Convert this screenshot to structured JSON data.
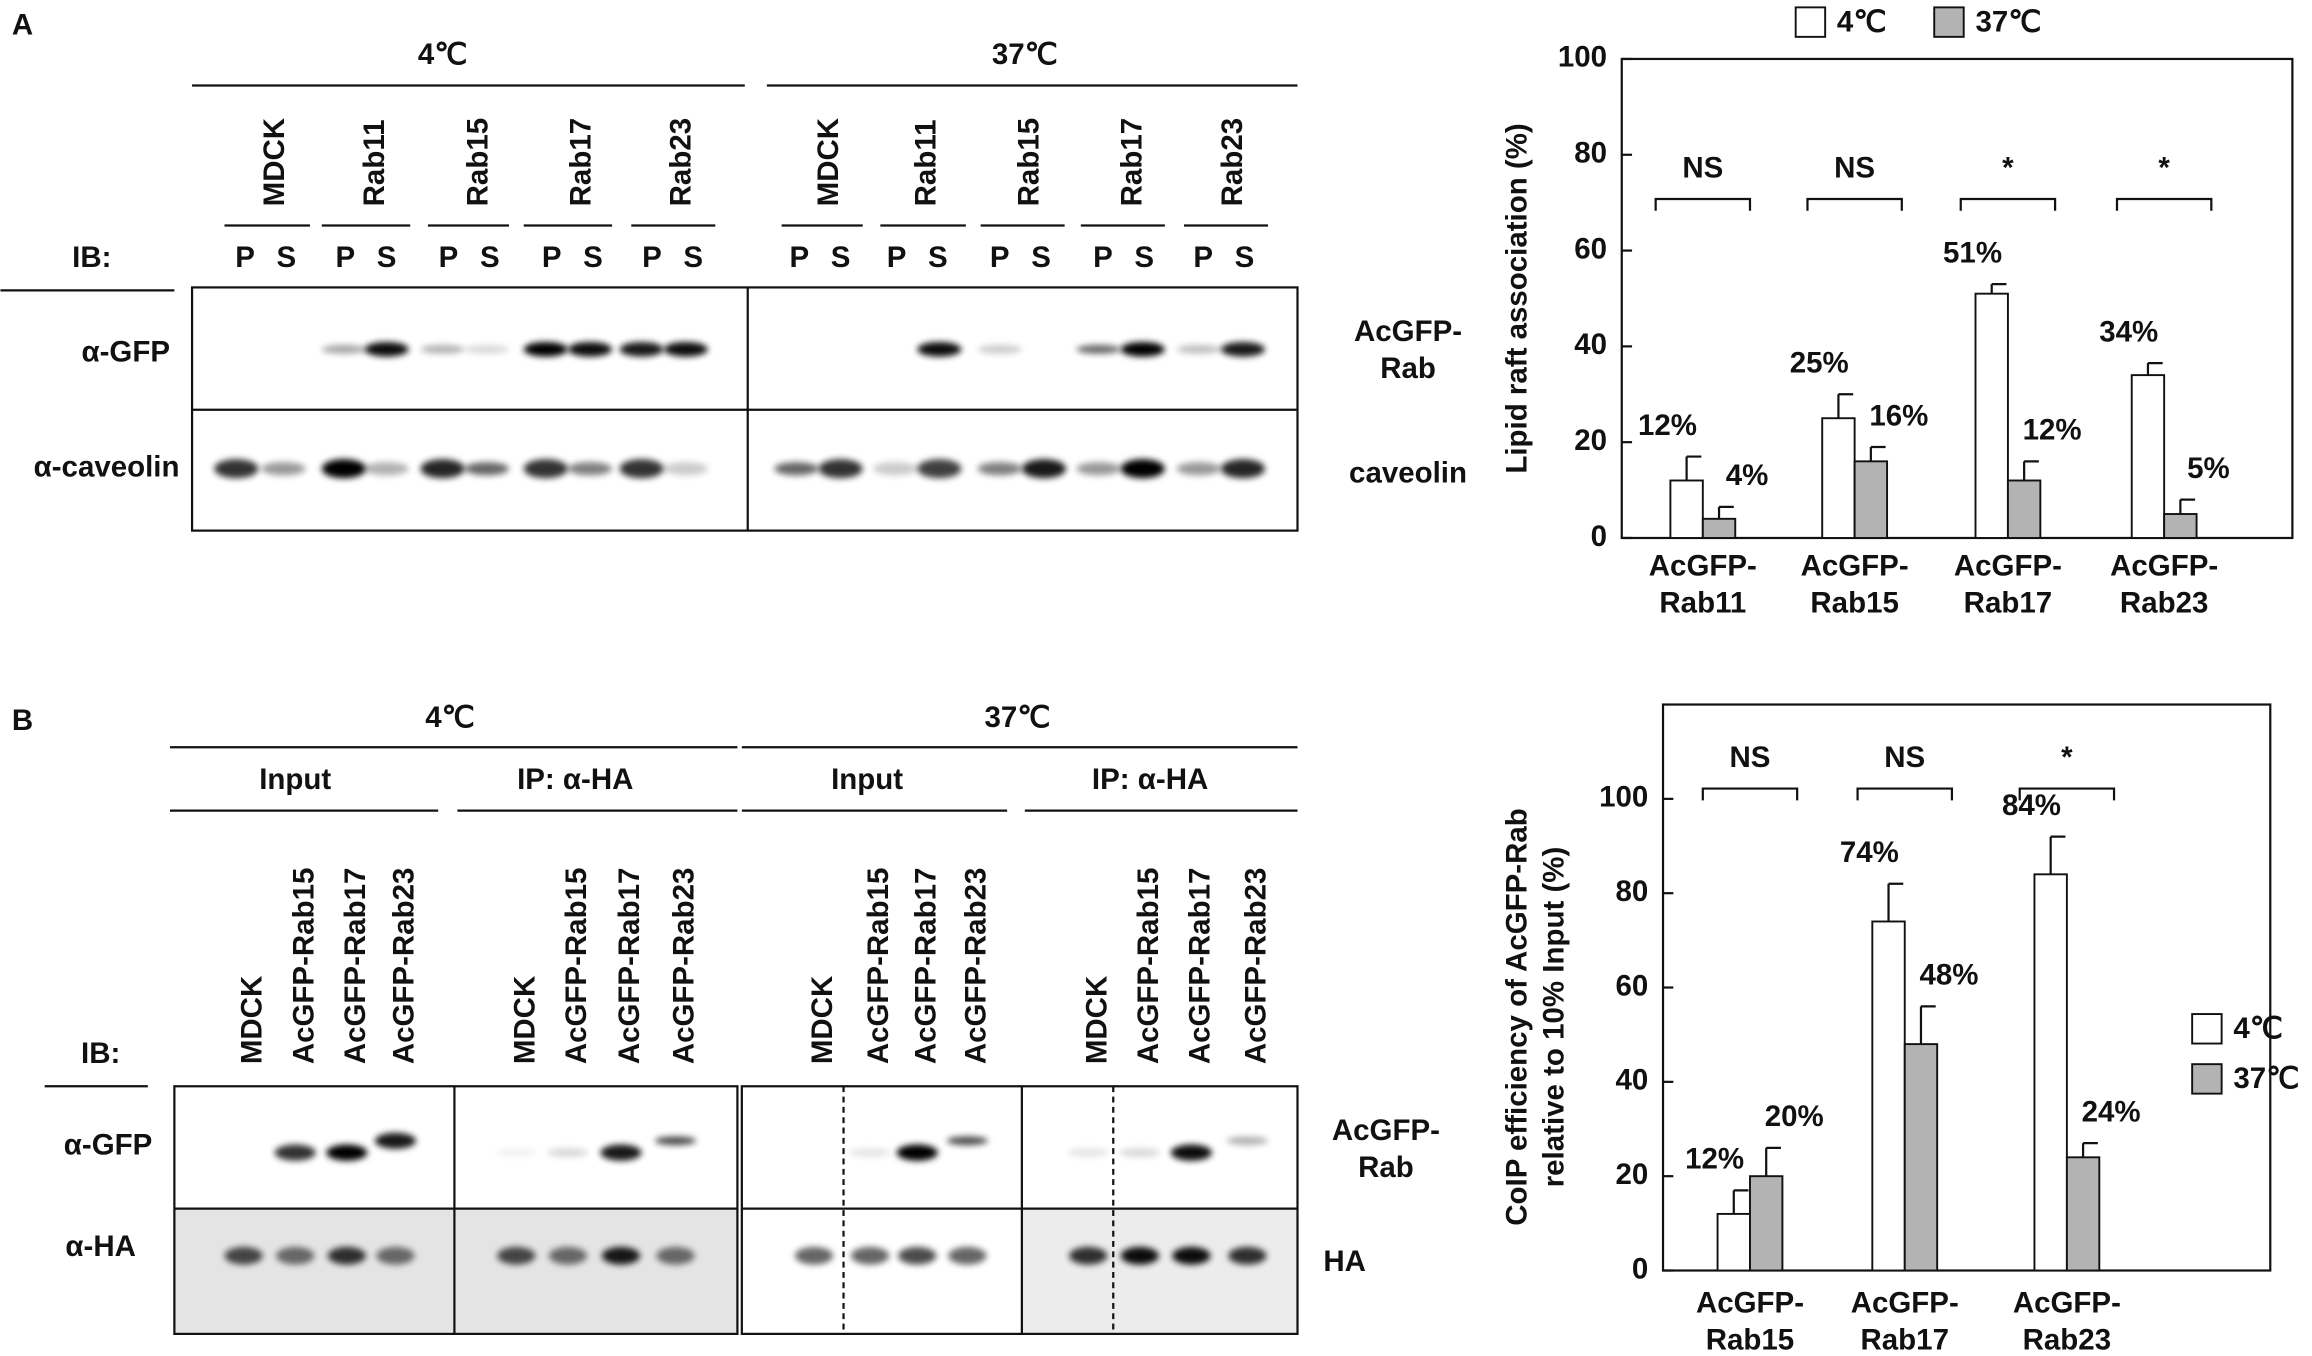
{
  "panels": [
    {
      "label": "A"
    },
    {
      "label": "B"
    }
  ],
  "blot_a": {
    "groups": [
      "4℃",
      "37℃"
    ],
    "lanes": [
      "MDCK",
      "Rab11",
      "Rab15",
      "Rab17",
      "Rab23"
    ],
    "ib": "IB:",
    "fractions": [
      "P",
      "S"
    ],
    "rows": [
      "α-GFP",
      "α-caveolin"
    ],
    "row_targets": [
      "AcGFP-\nRab",
      "caveolin"
    ]
  },
  "blot_b": {
    "groups": [
      "4℃",
      "37℃"
    ],
    "subgroups": [
      "Input",
      "IP: α-HA"
    ],
    "lanes": [
      "MDCK",
      "AcGFP-Rab15",
      "AcGFP-Rab17",
      "AcGFP-Rab23"
    ],
    "ib": "IB:",
    "rows": [
      "α-GFP",
      "α-HA"
    ],
    "row_targets": [
      "AcGFP-\nRab",
      "HA"
    ]
  },
  "chart_data": [
    {
      "type": "bar",
      "ylabel": "Lipid raft association (%)",
      "categories": [
        "AcGFP-\nRab11",
        "AcGFP-\nRab15",
        "AcGFP-\nRab17",
        "AcGFP-\nRab23"
      ],
      "series": [
        {
          "name": "4℃",
          "color": "#ffffff",
          "values": [
            12,
            25,
            51,
            34
          ],
          "errors": [
            5,
            5,
            2,
            2.5
          ],
          "value_labels": [
            "12%",
            "25%",
            "51%",
            "34%"
          ]
        },
        {
          "name": "37℃",
          "color": "#b3b3b3",
          "values": [
            4,
            16,
            12,
            5
          ],
          "errors": [
            2.5,
            3,
            4,
            3
          ],
          "value_labels": [
            "4%",
            "16%",
            "12%",
            "5%"
          ]
        }
      ],
      "significance": [
        "NS",
        "NS",
        "*",
        "*"
      ],
      "ylim": [
        0,
        100
      ],
      "yticks": [
        0,
        20,
        40,
        60,
        80,
        100
      ],
      "legend": "top"
    },
    {
      "type": "bar",
      "ylabel": "CoIP efficiency of AcGFP-Rab\nrelative to 10% Input (%)",
      "categories": [
        "AcGFP-\nRab15",
        "AcGFP-\nRab17",
        "AcGFP-\nRab23"
      ],
      "series": [
        {
          "name": "4℃",
          "color": "#ffffff",
          "values": [
            12,
            74,
            84
          ],
          "errors": [
            5,
            8,
            8
          ],
          "value_labels": [
            "12%",
            "74%",
            "84%"
          ]
        },
        {
          "name": "37℃",
          "color": "#b3b3b3",
          "values": [
            20,
            48,
            24
          ],
          "errors": [
            6,
            8,
            3
          ],
          "value_labels": [
            "20%",
            "48%",
            "24%"
          ]
        }
      ],
      "significance": [
        "NS",
        "NS",
        "*"
      ],
      "ylim": [
        0,
        120
      ],
      "yticks": [
        0,
        20,
        40,
        60,
        80,
        100
      ],
      "legend": "right"
    }
  ]
}
